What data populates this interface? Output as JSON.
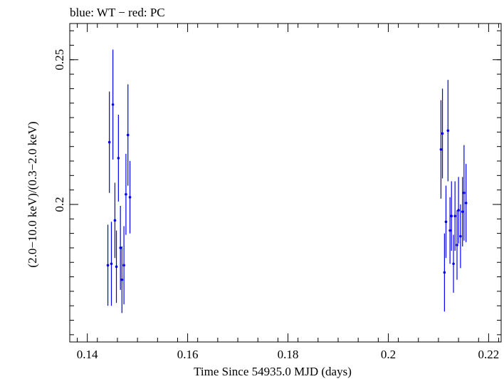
{
  "chart_data": {
    "type": "scatter",
    "title": "blue: WT − red: PC",
    "xlabel": "Time Since 54935.0 MJD (days)",
    "ylabel": "(2.0−10.0 keV)/(0.3−2.0 keV)",
    "xlim": [
      0.1365,
      0.2225
    ],
    "ylim": [
      0.1525,
      0.2625
    ],
    "x_ticks": [
      0.14,
      0.16,
      0.18,
      0.2,
      0.22
    ],
    "x_tick_labels": [
      "0.14",
      "0.16",
      "0.18",
      "0.2",
      "0.22"
    ],
    "y_ticks": [
      0.2,
      0.25
    ],
    "y_tick_labels": [
      "0.2",
      "0.25"
    ],
    "grid": false,
    "series": [
      {
        "name": "WT",
        "color": "#0000ee",
        "points": [
          {
            "x": 0.1441,
            "y": 0.179,
            "err": 0.014
          },
          {
            "x": 0.1444,
            "y": 0.2215,
            "err": 0.0175
          },
          {
            "x": 0.1448,
            "y": 0.1795,
            "err": 0.0145
          },
          {
            "x": 0.1451,
            "y": 0.2345,
            "err": 0.019
          },
          {
            "x": 0.1455,
            "y": 0.1945,
            "err": 0.013
          },
          {
            "x": 0.1458,
            "y": 0.1785,
            "err": 0.0125
          },
          {
            "x": 0.1462,
            "y": 0.216,
            "err": 0.015
          },
          {
            "x": 0.1466,
            "y": 0.185,
            "err": 0.0145
          },
          {
            "x": 0.1469,
            "y": 0.174,
            "err": 0.0115
          },
          {
            "x": 0.1473,
            "y": 0.179,
            "err": 0.0135
          },
          {
            "x": 0.1477,
            "y": 0.2035,
            "err": 0.014
          },
          {
            "x": 0.1481,
            "y": 0.224,
            "err": 0.0175
          },
          {
            "x": 0.1485,
            "y": 0.2025,
            "err": 0.0125
          },
          {
            "x": 0.2105,
            "y": 0.219,
            "err": 0.017
          },
          {
            "x": 0.2108,
            "y": 0.2245,
            "err": 0.0155
          },
          {
            "x": 0.2112,
            "y": 0.1765,
            "err": 0.0135
          },
          {
            "x": 0.2115,
            "y": 0.194,
            "err": 0.0125
          },
          {
            "x": 0.2119,
            "y": 0.2255,
            "err": 0.0175
          },
          {
            "x": 0.2123,
            "y": 0.191,
            "err": 0.0115
          },
          {
            "x": 0.2126,
            "y": 0.196,
            "err": 0.012
          },
          {
            "x": 0.213,
            "y": 0.1795,
            "err": 0.01
          },
          {
            "x": 0.2133,
            "y": 0.196,
            "err": 0.012
          },
          {
            "x": 0.2137,
            "y": 0.186,
            "err": 0.012
          },
          {
            "x": 0.214,
            "y": 0.198,
            "err": 0.0115
          },
          {
            "x": 0.2144,
            "y": 0.189,
            "err": 0.011
          },
          {
            "x": 0.2148,
            "y": 0.1975,
            "err": 0.012
          },
          {
            "x": 0.2151,
            "y": 0.204,
            "err": 0.0165
          },
          {
            "x": 0.2155,
            "y": 0.2005,
            "err": 0.0135
          }
        ]
      }
    ]
  }
}
